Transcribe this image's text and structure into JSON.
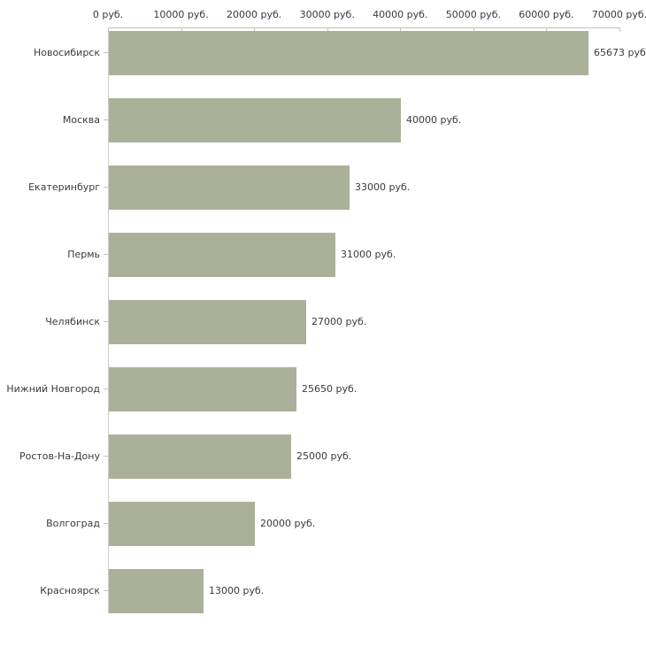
{
  "chart_data": {
    "type": "bar",
    "orientation": "horizontal",
    "title": "",
    "xlabel": "",
    "ylabel": "",
    "categories": [
      "Новосибирск",
      "Москва",
      "Екатеринбург",
      "Пермь",
      "Челябинск",
      "Нижний Новгород",
      "Ростов-На-Дону",
      "Волгоград",
      "Красноярск"
    ],
    "values": [
      65673,
      40000,
      33000,
      31000,
      27000,
      25650,
      25000,
      20000,
      13000
    ],
    "value_labels": [
      "65673 руб.",
      "40000 руб.",
      "33000 руб.",
      "31000 руб.",
      "27000 руб.",
      "25650 руб.",
      "25000 руб.",
      "20000 руб.",
      "13000 руб."
    ],
    "x_ticks": [
      0,
      10000,
      20000,
      30000,
      40000,
      50000,
      60000,
      70000
    ],
    "x_tick_labels": [
      "0 руб.",
      "10000 руб.",
      "20000 руб.",
      "30000 руб.",
      "40000 руб.",
      "50000 руб.",
      "60000 руб.",
      "70000 руб."
    ],
    "xlim": [
      0,
      70000
    ],
    "grid": false,
    "legend": null,
    "colors": {
      "bar": "#abb199",
      "axis_line": "#c2c2ad",
      "x_tick_mark": "#c6c6b2",
      "y_axis_line": "#cccccc",
      "y_tick_mark": "#c4c4c4",
      "text": "#3a3a3a",
      "background": "#ffffff"
    }
  }
}
